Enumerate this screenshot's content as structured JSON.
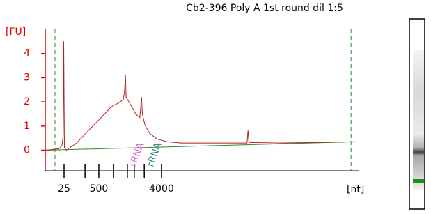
{
  "chart_data": {
    "type": "line",
    "title": "Cb2-396 Poly A 1st round dil 1:5",
    "ylabel": "[FU]",
    "xlabel": "[nt]",
    "ylim": [
      -0.85,
      5.0
    ],
    "yticks": [
      0,
      1,
      2,
      3,
      4
    ],
    "xlim": [
      0,
      100
    ],
    "xticks": [
      {
        "value": 6,
        "label": "25"
      },
      {
        "value": 12.7,
        "label": null
      },
      {
        "value": 17.1,
        "label": "500"
      },
      {
        "value": 21.8,
        "label": null
      },
      {
        "value": 26.2,
        "label": null
      },
      {
        "value": 28.4,
        "label": null
      },
      {
        "value": 31.6,
        "label": null
      },
      {
        "value": 37.1,
        "label": "4000"
      }
    ],
    "markers": [
      3.1,
      97.6
    ],
    "axis_color": "#e00000",
    "annotations": [
      "rRNA",
      "rRNA"
    ],
    "series": [
      {
        "color": "#b22222",
        "x": [
          0,
          2.2,
          4.4,
          5.3,
          5.7,
          5.9,
          6.1,
          6.7,
          7.8,
          10,
          12.2,
          14.4,
          16.7,
          18.9,
          21.1,
          23.3,
          24.9,
          25.3,
          25.6,
          25.8,
          26.7,
          28.9,
          30.2,
          30.7,
          31,
          31.8,
          33.3,
          35.6,
          38.9,
          43.3,
          52.2,
          64.4,
          64.7,
          65,
          74.4,
          85.6,
          97.6,
          99.3
        ],
        "values": [
          0,
          0.03,
          0.06,
          0.18,
          0.6,
          4.5,
          0.1,
          0,
          0.1,
          0.3,
          0.6,
          0.9,
          1.2,
          1.5,
          1.8,
          1.95,
          2.1,
          2.4,
          3.1,
          2.2,
          2.0,
          1.5,
          1.35,
          2.2,
          1.5,
          1.05,
          0.7,
          0.47,
          0.35,
          0.3,
          0.3,
          0.3,
          0.82,
          0.32,
          0.3,
          0.32,
          0.35,
          0.35
        ]
      },
      {
        "color": "#2e8b2e",
        "x": [
          0,
          98.9
        ],
        "values": [
          0,
          0.35
        ]
      }
    ]
  }
}
